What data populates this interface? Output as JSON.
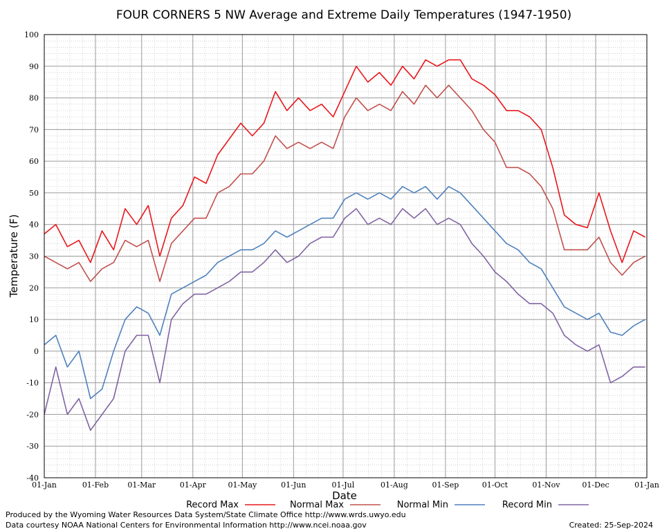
{
  "chart_data": {
    "type": "line",
    "title": "FOUR CORNERS 5 NW Average and Extreme Daily Temperatures (1947-1950)",
    "xlabel": "Date",
    "ylabel": "Temperature (F)",
    "ylim": [
      -40,
      100
    ],
    "y_ticks": [
      -40,
      -30,
      -20,
      -10,
      0,
      10,
      20,
      30,
      40,
      50,
      60,
      70,
      80,
      90,
      100
    ],
    "x_ticks": [
      {
        "label": "01-Jan",
        "day": 1
      },
      {
        "label": "01-Feb",
        "day": 32
      },
      {
        "label": "01-Mar",
        "day": 60
      },
      {
        "label": "01-Apr",
        "day": 91
      },
      {
        "label": "01-May",
        "day": 121
      },
      {
        "label": "01-Jun",
        "day": 152
      },
      {
        "label": "01-Jul",
        "day": 182
      },
      {
        "label": "01-Aug",
        "day": 213
      },
      {
        "label": "01-Sep",
        "day": 244
      },
      {
        "label": "01-Oct",
        "day": 274
      },
      {
        "label": "01-Nov",
        "day": 305
      },
      {
        "label": "01-Dec",
        "day": 335
      },
      {
        "label": "01-Jan",
        "day": 366
      }
    ],
    "grid": true,
    "legend_position": "bottom",
    "series": [
      {
        "name": "Record Max",
        "color": "#e8161b",
        "days": [
          1,
          8,
          15,
          22,
          29,
          36,
          43,
          50,
          57,
          64,
          71,
          78,
          85,
          92,
          99,
          106,
          113,
          120,
          127,
          134,
          141,
          148,
          155,
          162,
          169,
          176,
          183,
          190,
          197,
          204,
          211,
          218,
          225,
          232,
          239,
          246,
          253,
          260,
          267,
          274,
          281,
          288,
          295,
          302,
          309,
          316,
          323,
          330,
          337,
          344,
          351,
          358,
          365
        ],
        "values": [
          37,
          40,
          33,
          35,
          28,
          38,
          32,
          45,
          40,
          46,
          30,
          42,
          46,
          55,
          53,
          62,
          67,
          72,
          68,
          72,
          82,
          76,
          80,
          76,
          78,
          74,
          82,
          90,
          85,
          88,
          84,
          90,
          86,
          92,
          90,
          92,
          92,
          86,
          84,
          81,
          76,
          76,
          74,
          70,
          58,
          43,
          40,
          39,
          50,
          38,
          28,
          38,
          36
        ]
      },
      {
        "name": "Normal Max",
        "color": "#c0504d",
        "days": [
          1,
          8,
          15,
          22,
          29,
          36,
          43,
          50,
          57,
          64,
          71,
          78,
          85,
          92,
          99,
          106,
          113,
          120,
          127,
          134,
          141,
          148,
          155,
          162,
          169,
          176,
          183,
          190,
          197,
          204,
          211,
          218,
          225,
          232,
          239,
          246,
          253,
          260,
          267,
          274,
          281,
          288,
          295,
          302,
          309,
          316,
          323,
          330,
          337,
          344,
          351,
          358,
          365
        ],
        "values": [
          30,
          28,
          26,
          28,
          22,
          26,
          28,
          35,
          33,
          35,
          22,
          34,
          38,
          42,
          42,
          50,
          52,
          56,
          56,
          60,
          68,
          64,
          66,
          64,
          66,
          64,
          74,
          80,
          76,
          78,
          76,
          82,
          78,
          84,
          80,
          84,
          80,
          76,
          70,
          66,
          58,
          58,
          56,
          52,
          45,
          32,
          32,
          32,
          36,
          28,
          24,
          28,
          30
        ]
      },
      {
        "name": "Normal Min",
        "color": "#4f81bd",
        "days": [
          1,
          8,
          15,
          22,
          29,
          36,
          43,
          50,
          57,
          64,
          71,
          78,
          85,
          92,
          99,
          106,
          113,
          120,
          127,
          134,
          141,
          148,
          155,
          162,
          169,
          176,
          183,
          190,
          197,
          204,
          211,
          218,
          225,
          232,
          239,
          246,
          253,
          260,
          267,
          274,
          281,
          288,
          295,
          302,
          309,
          316,
          323,
          330,
          337,
          344,
          351,
          358,
          365
        ],
        "values": [
          2,
          5,
          -5,
          0,
          -15,
          -12,
          0,
          10,
          14,
          12,
          5,
          18,
          20,
          22,
          24,
          28,
          30,
          32,
          32,
          34,
          38,
          36,
          38,
          40,
          42,
          42,
          48,
          50,
          48,
          50,
          48,
          52,
          50,
          52,
          48,
          52,
          50,
          46,
          42,
          38,
          34,
          32,
          28,
          26,
          20,
          14,
          12,
          10,
          12,
          6,
          5,
          8,
          10
        ]
      },
      {
        "name": "Record Min",
        "color": "#8064a2",
        "days": [
          1,
          8,
          15,
          22,
          29,
          36,
          43,
          50,
          57,
          64,
          71,
          78,
          85,
          92,
          99,
          106,
          113,
          120,
          127,
          134,
          141,
          148,
          155,
          162,
          169,
          176,
          183,
          190,
          197,
          204,
          211,
          218,
          225,
          232,
          239,
          246,
          253,
          260,
          267,
          274,
          281,
          288,
          295,
          302,
          309,
          316,
          323,
          330,
          337,
          344,
          351,
          358,
          365
        ],
        "values": [
          -20,
          -5,
          -20,
          -15,
          -25,
          -20,
          -15,
          0,
          5,
          5,
          -10,
          10,
          15,
          18,
          18,
          20,
          22,
          25,
          25,
          28,
          32,
          28,
          30,
          34,
          36,
          36,
          42,
          45,
          40,
          42,
          40,
          45,
          42,
          45,
          40,
          42,
          40,
          34,
          30,
          25,
          22,
          18,
          15,
          15,
          12,
          5,
          2,
          0,
          2,
          -10,
          -8,
          -5,
          -5
        ]
      }
    ]
  },
  "footer": {
    "produced_by": "Produced by the Wyoming Water Resources Data System/State Climate Office http://www.wrds.uwyo.edu",
    "courtesy": "Data courtesy NOAA National Centers for Environmental Information http://www.ncei.noaa.gov",
    "created": "Created:  25-Sep-2024"
  }
}
